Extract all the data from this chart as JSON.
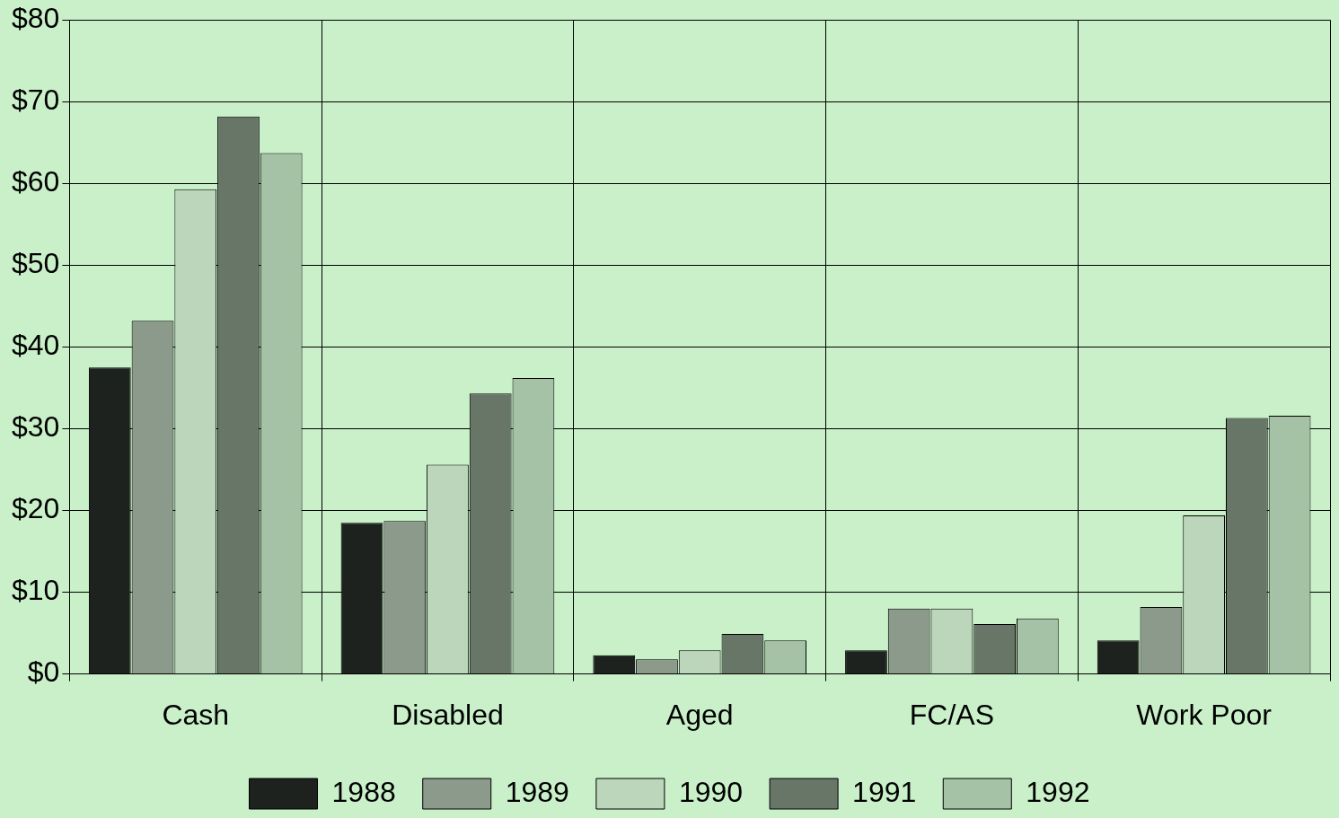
{
  "chart_data": {
    "type": "bar",
    "categories": [
      "Cash",
      "Disabled",
      "Aged",
      "FC/AS",
      "Work Poor"
    ],
    "series": [
      {
        "name": "1988",
        "color": "#1e221e",
        "values": [
          37.5,
          18.5,
          2.3,
          2.9,
          4.1
        ]
      },
      {
        "name": "1989",
        "color": "#8c9a8c",
        "values": [
          43.2,
          18.7,
          1.8,
          8.0,
          8.2
        ]
      },
      {
        "name": "1990",
        "color": "#bcd6bc",
        "values": [
          59.3,
          25.6,
          2.9,
          8.0,
          19.4
        ]
      },
      {
        "name": "1991",
        "color": "#687668",
        "values": [
          68.2,
          34.3,
          4.9,
          6.1,
          31.3
        ]
      },
      {
        "name": "1992",
        "color": "#a6c2a6",
        "values": [
          63.7,
          36.2,
          4.1,
          6.8,
          31.6
        ]
      }
    ],
    "ylim": [
      0,
      80
    ],
    "yticks": [
      {
        "value": 0,
        "label": "$0"
      },
      {
        "value": 10,
        "label": "$10"
      },
      {
        "value": 20,
        "label": "$20"
      },
      {
        "value": 30,
        "label": "$30"
      },
      {
        "value": 40,
        "label": "$40"
      },
      {
        "value": 50,
        "label": "$50"
      },
      {
        "value": 60,
        "label": "$60"
      },
      {
        "value": 70,
        "label": "$70"
      },
      {
        "value": 80,
        "label": "$80"
      }
    ],
    "grid": true,
    "legend": "bottom"
  }
}
